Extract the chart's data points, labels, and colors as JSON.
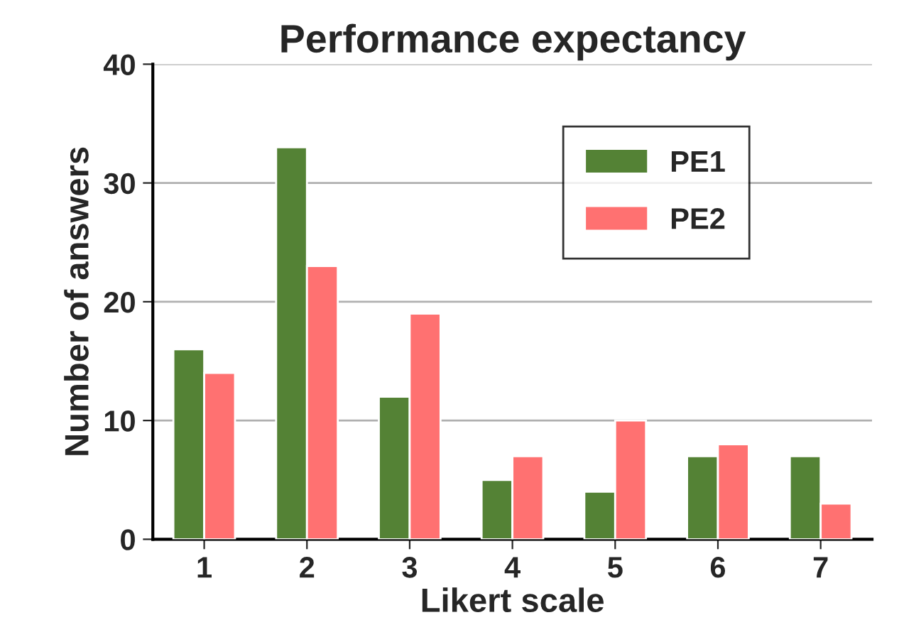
{
  "chart_data": {
    "type": "bar",
    "title": "Performance expectancy",
    "xlabel": "Likert scale",
    "ylabel": "Number of answers",
    "categories": [
      "1",
      "2",
      "3",
      "4",
      "5",
      "6",
      "7"
    ],
    "series": [
      {
        "name": "PE1",
        "color": "#548235",
        "values": [
          16,
          33,
          12,
          5,
          4,
          7,
          7
        ]
      },
      {
        "name": "PE2",
        "color": "#ff7171",
        "values": [
          14,
          23,
          19,
          7,
          10,
          8,
          3
        ]
      }
    ],
    "ylim": [
      0,
      40
    ],
    "yticks": [
      0,
      10,
      20,
      30,
      40
    ],
    "grid": "y",
    "legend": "top right"
  }
}
